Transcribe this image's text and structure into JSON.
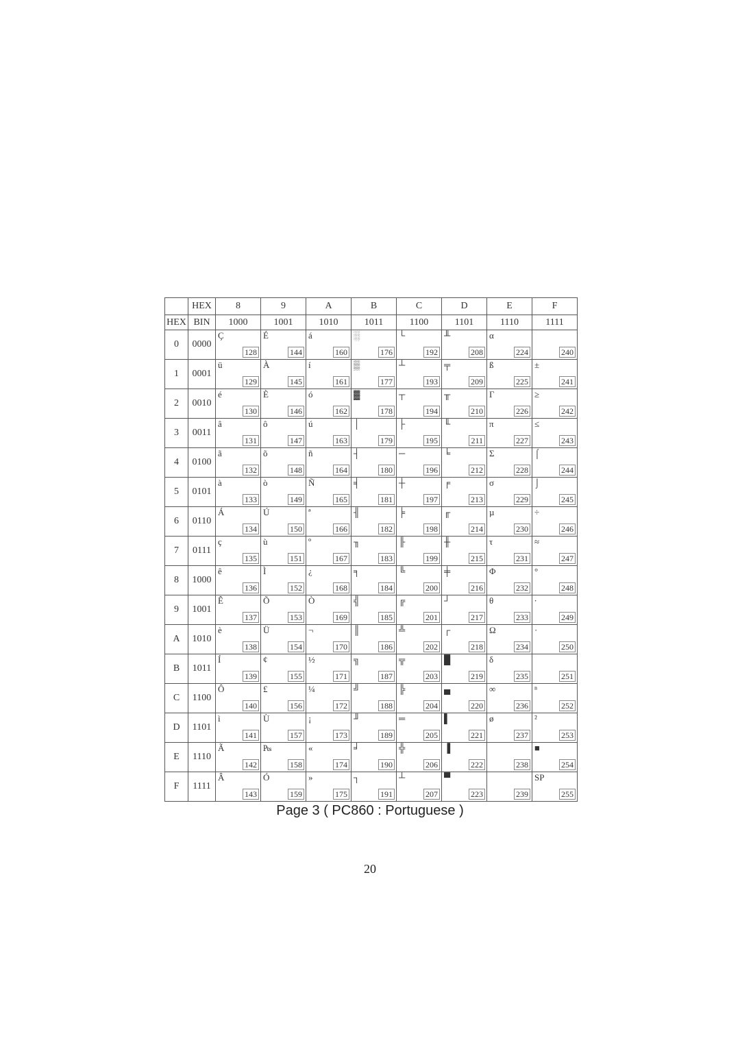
{
  "caption": "Page 3 ( PC860 : Portuguese )",
  "page_number": "20",
  "labels": {
    "hex_top": "HEX",
    "hex_left": "HEX",
    "bin": "BIN"
  },
  "style": {
    "background_color": "#ffffff",
    "text_color": "#333333",
    "border_color": "#555555",
    "dec_border_color": "#888888",
    "font_family": "Times New Roman, serif",
    "header_fontsize": 14,
    "glyph_fontsize": 13,
    "dec_fontsize": 12,
    "caption_fontsize": 20
  },
  "columns": [
    {
      "hex": "8",
      "bin": "1000"
    },
    {
      "hex": "9",
      "bin": "1001"
    },
    {
      "hex": "A",
      "bin": "1010"
    },
    {
      "hex": "B",
      "bin": "1011"
    },
    {
      "hex": "C",
      "bin": "1100"
    },
    {
      "hex": "D",
      "bin": "1101"
    },
    {
      "hex": "E",
      "bin": "1110"
    },
    {
      "hex": "F",
      "bin": "1111"
    }
  ],
  "rows": [
    {
      "hex": "0",
      "bin": "0000",
      "cells": [
        {
          "g": "Ç",
          "d": "128"
        },
        {
          "g": "É",
          "d": "144"
        },
        {
          "g": "á",
          "d": "160"
        },
        {
          "g": "░",
          "d": "176"
        },
        {
          "g": "└",
          "d": "192"
        },
        {
          "g": "╨",
          "d": "208"
        },
        {
          "g": "α",
          "d": "224"
        },
        {
          "g": "",
          "d": "240"
        }
      ]
    },
    {
      "hex": "1",
      "bin": "0001",
      "cells": [
        {
          "g": "ü",
          "d": "129"
        },
        {
          "g": "À",
          "d": "145"
        },
        {
          "g": "í",
          "d": "161"
        },
        {
          "g": "▒",
          "d": "177"
        },
        {
          "g": "┴",
          "d": "193"
        },
        {
          "g": "╤",
          "d": "209"
        },
        {
          "g": "ß",
          "d": "225"
        },
        {
          "g": "±",
          "d": "241"
        }
      ]
    },
    {
      "hex": "2",
      "bin": "0010",
      "cells": [
        {
          "g": "é",
          "d": "130"
        },
        {
          "g": "È",
          "d": "146"
        },
        {
          "g": "ó",
          "d": "162"
        },
        {
          "g": "▓",
          "d": "178"
        },
        {
          "g": "┬",
          "d": "194"
        },
        {
          "g": "╥",
          "d": "210"
        },
        {
          "g": "Γ",
          "d": "226"
        },
        {
          "g": "≥",
          "d": "242"
        }
      ]
    },
    {
      "hex": "3",
      "bin": "0011",
      "cells": [
        {
          "g": "â",
          "d": "131"
        },
        {
          "g": "ô",
          "d": "147"
        },
        {
          "g": "ú",
          "d": "163"
        },
        {
          "g": "│",
          "d": "179"
        },
        {
          "g": "├",
          "d": "195"
        },
        {
          "g": "╙",
          "d": "211"
        },
        {
          "g": "π",
          "d": "227"
        },
        {
          "g": "≤",
          "d": "243"
        }
      ]
    },
    {
      "hex": "4",
      "bin": "0100",
      "cells": [
        {
          "g": "ã",
          "d": "132"
        },
        {
          "g": "õ",
          "d": "148"
        },
        {
          "g": "ñ",
          "d": "164"
        },
        {
          "g": "┤",
          "d": "180"
        },
        {
          "g": "─",
          "d": "196"
        },
        {
          "g": "╘",
          "d": "212"
        },
        {
          "g": "Σ",
          "d": "228"
        },
        {
          "g": "⌠",
          "d": "244"
        }
      ]
    },
    {
      "hex": "5",
      "bin": "0101",
      "cells": [
        {
          "g": "à",
          "d": "133"
        },
        {
          "g": "ò",
          "d": "149"
        },
        {
          "g": "Ñ",
          "d": "165"
        },
        {
          "g": "╡",
          "d": "181"
        },
        {
          "g": "┼",
          "d": "197"
        },
        {
          "g": "╒",
          "d": "213"
        },
        {
          "g": "σ",
          "d": "229"
        },
        {
          "g": "⌡",
          "d": "245"
        }
      ]
    },
    {
      "hex": "6",
      "bin": "0110",
      "cells": [
        {
          "g": "Á",
          "d": "134"
        },
        {
          "g": "Ú",
          "d": "150"
        },
        {
          "g": "ª",
          "d": "166"
        },
        {
          "g": "╢",
          "d": "182"
        },
        {
          "g": "╞",
          "d": "198"
        },
        {
          "g": "╓",
          "d": "214"
        },
        {
          "g": "µ",
          "d": "230"
        },
        {
          "g": "÷",
          "d": "246"
        }
      ]
    },
    {
      "hex": "7",
      "bin": "0111",
      "cells": [
        {
          "g": "ç",
          "d": "135"
        },
        {
          "g": "ù",
          "d": "151"
        },
        {
          "g": "º",
          "d": "167"
        },
        {
          "g": "╖",
          "d": "183"
        },
        {
          "g": "╟",
          "d": "199"
        },
        {
          "g": "╫",
          "d": "215"
        },
        {
          "g": "τ",
          "d": "231"
        },
        {
          "g": "≈",
          "d": "247"
        }
      ]
    },
    {
      "hex": "8",
      "bin": "1000",
      "cells": [
        {
          "g": "ê",
          "d": "136"
        },
        {
          "g": "Ì",
          "d": "152"
        },
        {
          "g": "¿",
          "d": "168"
        },
        {
          "g": "╕",
          "d": "184"
        },
        {
          "g": "╚",
          "d": "200"
        },
        {
          "g": "╪",
          "d": "216"
        },
        {
          "g": "Φ",
          "d": "232"
        },
        {
          "g": "°",
          "d": "248"
        }
      ]
    },
    {
      "hex": "9",
      "bin": "1001",
      "cells": [
        {
          "g": "Ê",
          "d": "137"
        },
        {
          "g": "Õ",
          "d": "153"
        },
        {
          "g": "Ò",
          "d": "169"
        },
        {
          "g": "╣",
          "d": "185"
        },
        {
          "g": "╔",
          "d": "201"
        },
        {
          "g": "┘",
          "d": "217"
        },
        {
          "g": "θ",
          "d": "233"
        },
        {
          "g": "∙",
          "d": "249"
        }
      ]
    },
    {
      "hex": "A",
      "bin": "1010",
      "cells": [
        {
          "g": "è",
          "d": "138"
        },
        {
          "g": "Ü",
          "d": "154"
        },
        {
          "g": "¬",
          "d": "170"
        },
        {
          "g": "║",
          "d": "186"
        },
        {
          "g": "╩",
          "d": "202"
        },
        {
          "g": "┌",
          "d": "218"
        },
        {
          "g": "Ω",
          "d": "234"
        },
        {
          "g": "·",
          "d": "250"
        }
      ]
    },
    {
      "hex": "B",
      "bin": "1011",
      "cells": [
        {
          "g": "Í",
          "d": "139"
        },
        {
          "g": "¢",
          "d": "155"
        },
        {
          "g": "½",
          "d": "171"
        },
        {
          "g": "╗",
          "d": "187"
        },
        {
          "g": "╦",
          "d": "203"
        },
        {
          "g": "█",
          "d": "219"
        },
        {
          "g": "δ",
          "d": "235"
        },
        {
          "g": "",
          "d": "251"
        }
      ]
    },
    {
      "hex": "C",
      "bin": "1100",
      "cells": [
        {
          "g": "Ô",
          "d": "140"
        },
        {
          "g": "£",
          "d": "156"
        },
        {
          "g": "¼",
          "d": "172"
        },
        {
          "g": "╝",
          "d": "188"
        },
        {
          "g": "╠",
          "d": "204"
        },
        {
          "g": "▄",
          "d": "220"
        },
        {
          "g": "∞",
          "d": "236"
        },
        {
          "g": "ⁿ",
          "d": "252"
        }
      ]
    },
    {
      "hex": "D",
      "bin": "1101",
      "cells": [
        {
          "g": "ì",
          "d": "141"
        },
        {
          "g": "Ù",
          "d": "157"
        },
        {
          "g": "¡",
          "d": "173"
        },
        {
          "g": "╜",
          "d": "189"
        },
        {
          "g": "═",
          "d": "205"
        },
        {
          "g": "▌",
          "d": "221"
        },
        {
          "g": "ø",
          "d": "237"
        },
        {
          "g": "²",
          "d": "253"
        }
      ]
    },
    {
      "hex": "E",
      "bin": "1110",
      "cells": [
        {
          "g": "Ã",
          "d": "142"
        },
        {
          "g": "₧",
          "d": "158"
        },
        {
          "g": "«",
          "d": "174"
        },
        {
          "g": "╛",
          "d": "190"
        },
        {
          "g": "╬",
          "d": "206"
        },
        {
          "g": "▐",
          "d": "222"
        },
        {
          "g": "",
          "d": "238"
        },
        {
          "g": "■",
          "d": "254"
        }
      ]
    },
    {
      "hex": "F",
      "bin": "1111",
      "cells": [
        {
          "g": "Â",
          "d": "143"
        },
        {
          "g": "Ó",
          "d": "159"
        },
        {
          "g": "»",
          "d": "175"
        },
        {
          "g": "┐",
          "d": "191"
        },
        {
          "g": "┴",
          "d": "207"
        },
        {
          "g": "▀",
          "d": "223"
        },
        {
          "g": "",
          "d": "239"
        },
        {
          "g": "SP",
          "d": "255"
        }
      ]
    }
  ]
}
